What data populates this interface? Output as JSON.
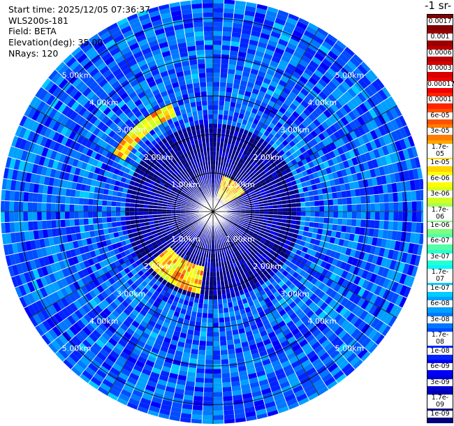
{
  "info": {
    "start_time": "Start time: 2025/12/05 07:36:37",
    "instrument": "WLS200s-181",
    "field": "Field: BETA",
    "elevation": "Elevation(deg): 35.00",
    "nrays": "NRays: 120"
  },
  "colorbar": {
    "title": "-1 sr-",
    "labels": [
      "0.0017",
      "0.001",
      "0.0006",
      "0.0003",
      "0.00017",
      "0.0001",
      "6e-05",
      "3e-05",
      "1.7e-05",
      "1e-05",
      "6e-06",
      "3e-06",
      "1.7e-06",
      "1e-06",
      "6e-07",
      "3e-07",
      "1.7e-07",
      "1e-07",
      "6e-08",
      "3e-08",
      "1.7e-08",
      "1e-08",
      "6e-09",
      "3e-09",
      "1.7e-09",
      "1e-09"
    ],
    "colors": [
      "#800000",
      "#9a0000",
      "#b80000",
      "#d80000",
      "#f40000",
      "#ff2400",
      "#ff5000",
      "#ff7c00",
      "#ffa800",
      "#ffd400",
      "#fffe00",
      "#d4ff23",
      "#a6ff52",
      "#7cff7c",
      "#52ffa6",
      "#28ffd0",
      "#00f8ff",
      "#00ccff",
      "#00a0ff",
      "#0078ff",
      "#004cff",
      "#0024ff",
      "#0000f8",
      "#0000d0",
      "#0000a6",
      "#00007c"
    ]
  },
  "chart_data": {
    "type": "heatmap",
    "projection": "polar (PPI)",
    "field": "BETA",
    "units": "sr-1",
    "elevation_deg": 35.0,
    "nrays": 120,
    "range_rings_km": [
      1.0,
      2.0,
      3.0,
      4.0,
      5.0
    ],
    "ring_labels": [
      "1.00km",
      "2.00km",
      "3.00km",
      "4.00km",
      "5.00km"
    ],
    "max_range_km": 5.5,
    "color_scale": "log",
    "vmin": 1e-09,
    "vmax": 0.0017,
    "dominant_value_range": [
      1e-08,
      3e-07
    ],
    "high_value_arcs": [
      {
        "azimuth_deg": [
          300,
          340
        ],
        "range_km": [
          2.6,
          3.0
        ],
        "approx_value": 1e-05
      },
      {
        "azimuth_deg": [
          15,
          60
        ],
        "range_km": [
          0.4,
          1.0
        ],
        "approx_value": 1e-05
      },
      {
        "azimuth_deg": [
          190,
          230
        ],
        "range_km": [
          1.4,
          2.2
        ],
        "approx_value": 1e-05
      }
    ]
  }
}
